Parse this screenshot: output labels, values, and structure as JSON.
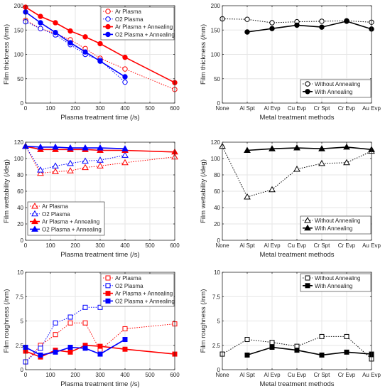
{
  "figure": {
    "colors": {
      "ar": "#ff0000",
      "o2": "#0000ff",
      "black": "#000000",
      "grid": "#e6e6e6",
      "axis": "#262626"
    }
  },
  "chart_data": [
    {
      "id": "p1",
      "type": "line",
      "title": "",
      "xlabel": "Plasma treatment time (/s)",
      "ylabel": "Film thickness (/nm)",
      "xlim": [
        0,
        600
      ],
      "ylim": [
        0,
        200
      ],
      "xticks": [
        0,
        100,
        200,
        300,
        400,
        500,
        600
      ],
      "yticks": [
        0,
        50,
        100,
        150,
        200
      ],
      "grid": true,
      "legend_loc": "top-right",
      "series": [
        {
          "name": "Ar Plasma",
          "color": "#ff0000",
          "marker": "circle",
          "filled": false,
          "dashed": true,
          "x": [
            0,
            60,
            120,
            180,
            240,
            300,
            400,
            600
          ],
          "y": [
            170,
            153,
            143,
            130,
            112,
            92,
            70,
            28
          ]
        },
        {
          "name": "O2 Plasma",
          "color": "#0000ff",
          "marker": "circle",
          "filled": false,
          "dashed": true,
          "x": [
            0,
            60,
            120,
            180,
            240,
            300,
            400
          ],
          "y": [
            167,
            153,
            140,
            120,
            100,
            88,
            43
          ]
        },
        {
          "name": "Ar Plasma + Annealing",
          "color": "#ff0000",
          "marker": "circle",
          "filled": true,
          "dashed": false,
          "x": [
            0,
            60,
            120,
            180,
            240,
            300,
            400,
            600
          ],
          "y": [
            197,
            178,
            165,
            148,
            136,
            122,
            94,
            42
          ]
        },
        {
          "name": "O2 Plasma + Annealing",
          "color": "#0000ff",
          "marker": "circle",
          "filled": true,
          "dashed": false,
          "x": [
            0,
            60,
            120,
            180,
            240,
            300,
            400
          ],
          "y": [
            187,
            165,
            145,
            124,
            105,
            86,
            54
          ]
        }
      ]
    },
    {
      "id": "p2",
      "type": "line",
      "title": "",
      "xlabel": "Metal treatment methods",
      "ylabel": "Film thickness (/nm)",
      "categories": [
        "None",
        "Al Spt",
        "Al Evp",
        "Cu Evp",
        "Cr Spt",
        "Cr Evp",
        "Au Evp"
      ],
      "ylim": [
        0,
        200
      ],
      "yticks": [
        0,
        50,
        100,
        150,
        200
      ],
      "grid": true,
      "legend_loc": "bottom-right",
      "series": [
        {
          "name": "Without Annealing",
          "color": "#000000",
          "marker": "circle",
          "filled": false,
          "dashed": true,
          "values": [
            173,
            172,
            165,
            167,
            168,
            169,
            166
          ]
        },
        {
          "name": "With Annealing",
          "color": "#000000",
          "marker": "circle",
          "filled": true,
          "dashed": false,
          "values": [
            null,
            146,
            153,
            160,
            156,
            168,
            152
          ]
        }
      ]
    },
    {
      "id": "p3",
      "type": "line",
      "title": "",
      "xlabel": "Plasma treatment time (/s)",
      "ylabel": "Film wettability (/deg)",
      "xlim": [
        0,
        600
      ],
      "ylim": [
        0,
        120
      ],
      "xticks": [
        0,
        100,
        200,
        300,
        400,
        500,
        600
      ],
      "yticks": [
        0,
        20,
        40,
        60,
        80,
        100,
        120
      ],
      "grid": true,
      "legend_loc": "bottom-left",
      "series": [
        {
          "name": "Ar Plasma",
          "color": "#ff0000",
          "marker": "triangle",
          "filled": false,
          "dashed": true,
          "x": [
            0,
            60,
            120,
            180,
            240,
            300,
            400,
            600
          ],
          "y": [
            115,
            82,
            84,
            85,
            89,
            91,
            95,
            102
          ]
        },
        {
          "name": "O2 Plasma",
          "color": "#0000ff",
          "marker": "triangle",
          "filled": false,
          "dashed": true,
          "x": [
            0,
            60,
            120,
            180,
            240,
            300,
            400
          ],
          "y": [
            115,
            86,
            91,
            94,
            97,
            98,
            104
          ]
        },
        {
          "name": "Ar Plasma + Annealing",
          "color": "#ff0000",
          "marker": "triangle",
          "filled": true,
          "dashed": false,
          "x": [
            0,
            60,
            120,
            180,
            240,
            300,
            400,
            600
          ],
          "y": [
            115,
            111,
            111,
            111,
            111,
            110,
            110,
            108
          ]
        },
        {
          "name": "O2 Plasma + Annealing",
          "color": "#0000ff",
          "marker": "triangle",
          "filled": true,
          "dashed": false,
          "x": [
            0,
            60,
            120,
            180,
            240,
            300,
            400
          ],
          "y": [
            115,
            114,
            114,
            113,
            113,
            113,
            112
          ]
        }
      ]
    },
    {
      "id": "p4",
      "type": "line",
      "title": "",
      "xlabel": "Metal treatment methods",
      "ylabel": "Film wettability (/deg)",
      "categories": [
        "None",
        "Al Spt",
        "Al Evp",
        "Cu Evp",
        "Cr Spt",
        "Cr Evp",
        "Au Evp"
      ],
      "ylim": [
        0,
        120
      ],
      "yticks": [
        0,
        20,
        40,
        60,
        80,
        100,
        120
      ],
      "grid": true,
      "legend_loc": "bottom-right",
      "series": [
        {
          "name": "Without Annealing",
          "color": "#000000",
          "marker": "triangle",
          "filled": false,
          "dashed": true,
          "values": [
            115,
            53,
            62,
            87,
            94,
            95,
            109
          ]
        },
        {
          "name": "With Annealing",
          "color": "#000000",
          "marker": "triangle",
          "filled": true,
          "dashed": false,
          "values": [
            null,
            110,
            112,
            113,
            112,
            114,
            111
          ]
        }
      ]
    },
    {
      "id": "p5",
      "type": "line",
      "title": "",
      "xlabel": "Plasma treatment time (/s)",
      "ylabel": "Film roughness (/nm)",
      "xlim": [
        0,
        600
      ],
      "ylim": [
        0,
        10
      ],
      "xticks": [
        0,
        100,
        200,
        300,
        400,
        500,
        600
      ],
      "yticks": [
        0,
        2.5,
        5,
        7.5,
        10
      ],
      "grid": true,
      "legend_loc": "top-right",
      "series": [
        {
          "name": "Ar Plasma",
          "color": "#ff0000",
          "marker": "square",
          "filled": false,
          "dashed": true,
          "x": [
            0,
            60,
            120,
            180,
            240,
            300,
            400,
            600
          ],
          "y": [
            0.8,
            2.5,
            3.6,
            4.8,
            4.8,
            2.0,
            4.2,
            4.7
          ]
        },
        {
          "name": "O2 Plasma",
          "color": "#0000ff",
          "marker": "square",
          "filled": false,
          "dashed": true,
          "x": [
            0,
            60,
            120,
            180,
            240,
            300,
            400
          ],
          "y": [
            0.8,
            2.2,
            4.8,
            5.4,
            6.4,
            6.4,
            7.4
          ]
        },
        {
          "name": "Ar Plasma + Annealing",
          "color": "#ff0000",
          "marker": "square",
          "filled": true,
          "dashed": false,
          "x": [
            0,
            60,
            120,
            180,
            240,
            300,
            400,
            600
          ],
          "y": [
            1.9,
            1.3,
            2.0,
            1.8,
            2.5,
            2.4,
            2.1,
            1.6
          ]
        },
        {
          "name": "O2 Plasma + Annealing",
          "color": "#0000ff",
          "marker": "square",
          "filled": true,
          "dashed": false,
          "x": [
            0,
            60,
            120,
            180,
            240,
            300,
            400
          ],
          "y": [
            2.3,
            1.5,
            1.8,
            2.3,
            2.2,
            1.6,
            3.1
          ]
        }
      ]
    },
    {
      "id": "p6",
      "type": "line",
      "title": "",
      "xlabel": "Metal treatment methods",
      "ylabel": "Film roughness (/nm)",
      "categories": [
        "None",
        "Al Spt",
        "Al Evp",
        "Cu Evp",
        "Cr Spt",
        "Cr Evp",
        "Au Evp"
      ],
      "ylim": [
        0,
        10
      ],
      "yticks": [
        0,
        2.5,
        5,
        7.5,
        10
      ],
      "grid": true,
      "legend_loc": "top-right",
      "series": [
        {
          "name": "Without Annealing",
          "color": "#000000",
          "marker": "square",
          "filled": false,
          "dashed": true,
          "values": [
            1.6,
            3.1,
            2.8,
            2.4,
            3.4,
            3.4,
            1.1
          ]
        },
        {
          "name": "With Annealing",
          "color": "#000000",
          "marker": "square",
          "filled": true,
          "dashed": false,
          "values": [
            null,
            1.5,
            2.3,
            2.0,
            1.5,
            1.8,
            1.6
          ]
        }
      ]
    }
  ]
}
